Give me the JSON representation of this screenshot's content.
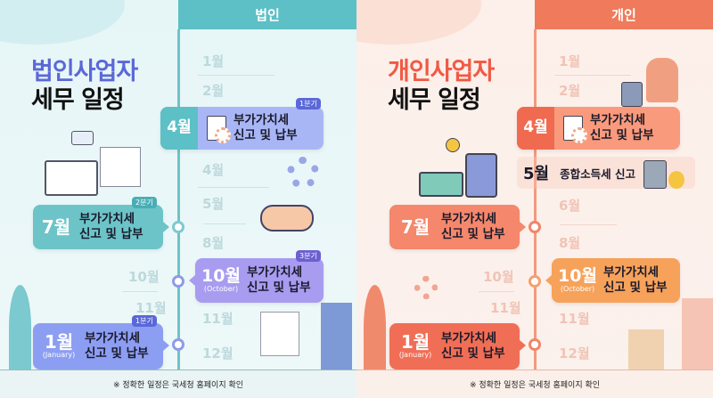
{
  "corporate": {
    "header": "법인",
    "title_line1": "법인사업자",
    "title_line2": "세무 일정",
    "ghost_months": [
      "1월",
      "2월",
      "4월",
      "5월",
      "8월",
      "10월",
      "11월",
      "11월",
      "12월"
    ],
    "cards": [
      {
        "month": "4월",
        "text1": "부가가치세",
        "text2": "신고 및 납부",
        "badge": "1분기"
      },
      {
        "month": "7월",
        "text1": "부가가치세",
        "text2": "신고 및 납부",
        "badge": "2분기"
      },
      {
        "month": "10월",
        "month_en": "(October)",
        "text1": "부가가치세",
        "text2": "신고 및 납부",
        "badge": "3분기"
      },
      {
        "month": "1월",
        "month_en": "(January)",
        "text1": "부가가치세",
        "text2": "신고 및 납부",
        "badge": "1분기"
      }
    ],
    "footer": "※ 정확한 일정은 국세청 홈페이지 확인",
    "colors": {
      "accent": "#5cc0c6",
      "title": "#5a68d8",
      "card_4": "#a9b6f6",
      "card_7": "#6cc4c8",
      "card_10": "#a79cf0",
      "card_1": "#8c9ef2"
    }
  },
  "individual": {
    "header": "개인",
    "title_line1": "개인사업자",
    "title_line2": "세무 일정",
    "ghost_months": [
      "1월",
      "2월",
      "6월",
      "8월",
      "10월",
      "11월",
      "11월",
      "12월"
    ],
    "cards": [
      {
        "month": "4월",
        "text1": "부가가치세",
        "text2": "신고 및 납부"
      },
      {
        "month": "5월",
        "text": "종합소득세 신고"
      },
      {
        "month": "7월",
        "text1": "부가가치세",
        "text2": "신고 및 납부"
      },
      {
        "month": "10월",
        "month_en": "(October)",
        "text1": "부가가치세",
        "text2": "신고 및 납부"
      },
      {
        "month": "1월",
        "month_en": "(January)",
        "text1": "부가가치세",
        "text2": "신고 및 납부"
      }
    ],
    "footer": "※ 정확한 일정은 국세청 홈페이지 확인",
    "colors": {
      "accent": "#f07a5c",
      "title": "#ef5a45",
      "card_4": "#f99a7c",
      "card_7": "#f4876c",
      "card_10": "#f7a25a",
      "card_1": "#f06e56"
    }
  }
}
